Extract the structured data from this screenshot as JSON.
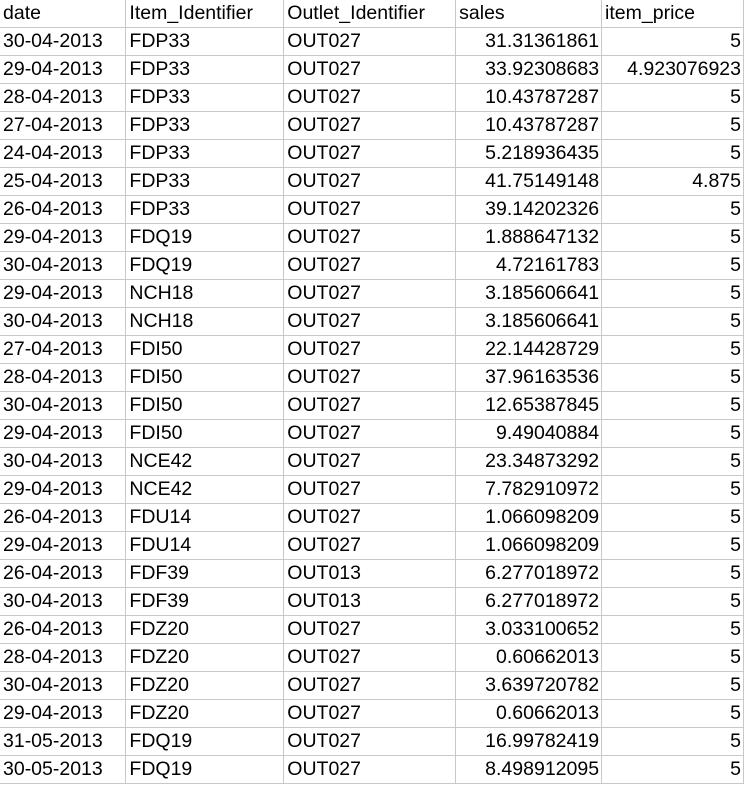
{
  "sheet": {
    "columns": [
      "date",
      "Item_Identifier",
      "Outlet_Identifier",
      "sales",
      "item_price"
    ],
    "rows": [
      [
        "30-04-2013",
        "FDP33",
        "OUT027",
        "31.31361861",
        "5"
      ],
      [
        "29-04-2013",
        "FDP33",
        "OUT027",
        "33.92308683",
        "4.923076923"
      ],
      [
        "28-04-2013",
        "FDP33",
        "OUT027",
        "10.43787287",
        "5"
      ],
      [
        "27-04-2013",
        "FDP33",
        "OUT027",
        "10.43787287",
        "5"
      ],
      [
        "24-04-2013",
        "FDP33",
        "OUT027",
        "5.218936435",
        "5"
      ],
      [
        "25-04-2013",
        "FDP33",
        "OUT027",
        "41.75149148",
        "4.875"
      ],
      [
        "26-04-2013",
        "FDP33",
        "OUT027",
        "39.14202326",
        "5"
      ],
      [
        "29-04-2013",
        "FDQ19",
        "OUT027",
        "1.888647132",
        "5"
      ],
      [
        "30-04-2013",
        "FDQ19",
        "OUT027",
        "4.72161783",
        "5"
      ],
      [
        "29-04-2013",
        "NCH18",
        "OUT027",
        "3.185606641",
        "5"
      ],
      [
        "30-04-2013",
        "NCH18",
        "OUT027",
        "3.185606641",
        "5"
      ],
      [
        "27-04-2013",
        "FDI50",
        "OUT027",
        "22.14428729",
        "5"
      ],
      [
        "28-04-2013",
        "FDI50",
        "OUT027",
        "37.96163536",
        "5"
      ],
      [
        "30-04-2013",
        "FDI50",
        "OUT027",
        "12.65387845",
        "5"
      ],
      [
        "29-04-2013",
        "FDI50",
        "OUT027",
        "9.49040884",
        "5"
      ],
      [
        "30-04-2013",
        "NCE42",
        "OUT027",
        "23.34873292",
        "5"
      ],
      [
        "29-04-2013",
        "NCE42",
        "OUT027",
        "7.782910972",
        "5"
      ],
      [
        "26-04-2013",
        "FDU14",
        "OUT027",
        "1.066098209",
        "5"
      ],
      [
        "29-04-2013",
        "FDU14",
        "OUT027",
        "1.066098209",
        "5"
      ],
      [
        "26-04-2013",
        "FDF39",
        "OUT013",
        "6.277018972",
        "5"
      ],
      [
        "30-04-2013",
        "FDF39",
        "OUT013",
        "6.277018972",
        "5"
      ],
      [
        "26-04-2013",
        "FDZ20",
        "OUT027",
        "3.033100652",
        "5"
      ],
      [
        "28-04-2013",
        "FDZ20",
        "OUT027",
        "0.60662013",
        "5"
      ],
      [
        "30-04-2013",
        "FDZ20",
        "OUT027",
        "3.639720782",
        "5"
      ],
      [
        "29-04-2013",
        "FDZ20",
        "OUT027",
        "0.60662013",
        "5"
      ],
      [
        "31-05-2013",
        "FDQ19",
        "OUT027",
        "16.99782419",
        "5"
      ],
      [
        "30-05-2013",
        "FDQ19",
        "OUT027",
        "8.498912095",
        "5"
      ]
    ]
  },
  "colors": {
    "grid": "#c8c8c8",
    "text": "#000000",
    "background": "#ffffff"
  }
}
